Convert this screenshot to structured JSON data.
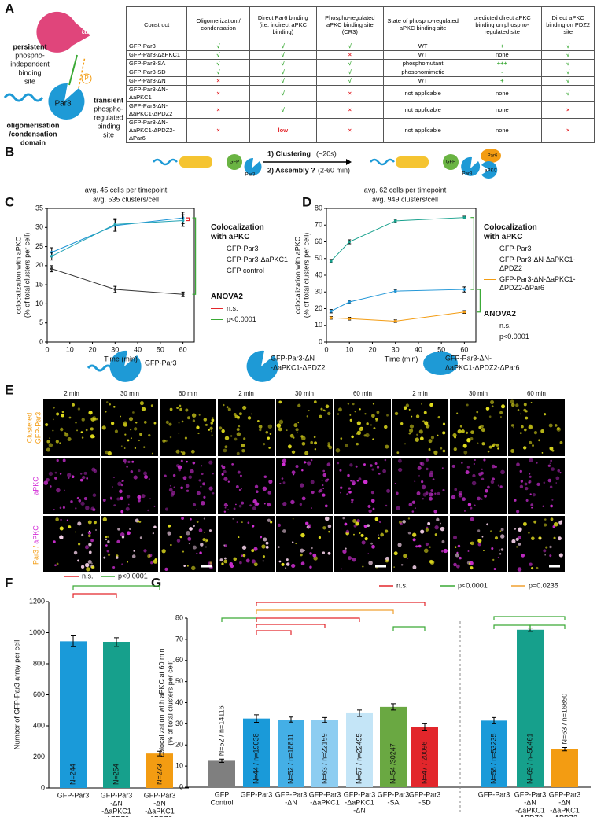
{
  "figure_labels": [
    "A",
    "B",
    "C",
    "D",
    "E",
    "F",
    "G"
  ],
  "panel_a": {
    "diagram": {
      "apkc": "aPKC",
      "par3": "Par3",
      "p": "P",
      "persistent": [
        "persistent",
        "phospho-",
        "independent",
        "binding",
        "site"
      ],
      "transient": [
        "transient",
        "phospho-",
        "regulated",
        "binding",
        "site"
      ],
      "domain": [
        "oligomerisation",
        "/condensation",
        "domain"
      ]
    },
    "table": {
      "header": [
        "Construct",
        "Oligomerization / condensation",
        "Direct Par6 binding (i.e. indirect aPKC binding)",
        "Phospho-regulated aPKC binding site (CR3)",
        "State of phospho-regulated aPKC binding site",
        "predicted direct aPKC binding on phospho-regulated site",
        "Direct aPKC binding on PDZ2 site"
      ],
      "rows": [
        [
          "GFP-Par3",
          "√",
          "√",
          "√",
          "WT",
          "+",
          "√"
        ],
        [
          "GFP-Par3-ΔaPKC1",
          "√",
          "√",
          "×",
          "WT",
          "none",
          "√"
        ],
        [
          "GFP-Par3-SA",
          "√",
          "√",
          "√",
          "phosphomutant",
          "+++",
          "√"
        ],
        [
          "GFP-Par3-SD",
          "√",
          "√",
          "√",
          "phosphomimetic",
          "-",
          "√"
        ],
        [
          "GFP-Par3-ΔN",
          "×",
          "√",
          "√",
          "WT",
          "+",
          "√"
        ],
        [
          "GFP-Par3-ΔN-ΔaPKC1",
          "×",
          "√",
          "×",
          "not applicable",
          "none",
          "√"
        ],
        [
          "GFP-Par3-ΔN-ΔaPKC1-ΔPDZ2",
          "×",
          "√",
          "×",
          "not applicable",
          "none",
          "×"
        ],
        [
          "GFP-Par3-ΔN-ΔaPKC1-ΔPDZ2-ΔPar6",
          "×",
          "low",
          "×",
          "not applicable",
          "none",
          "×"
        ]
      ]
    }
  },
  "panel_b": {
    "gfp": "GFP",
    "par3": "Par3",
    "step1": "1) Clustering",
    "step1_time": "(~20s)",
    "step2": "2) Assembly ?",
    "step2_time": "(2-60 min)",
    "par6": "Par6",
    "apkc": "aPKC"
  },
  "panel_e": {
    "constructs": [
      [
        "GFP-Par3"
      ],
      [
        "GFP-Par3-ΔN",
        "-ΔaPKC1-ΔPDZ2"
      ],
      [
        "GFP-Par3-ΔN-",
        "ΔaPKC1-ΔPDZ2-ΔPar6"
      ]
    ],
    "timepoints": [
      "2 min",
      "30 min",
      "60 min"
    ],
    "rows": [
      [
        "Clustered",
        "GFP-Par3"
      ],
      [
        "aPKC"
      ],
      [
        "Par3 /",
        "aPKC"
      ]
    ]
  },
  "chart_data": [
    {
      "type": "line",
      "title": [
        "avg. 45 cells per timepoint",
        "avg. 535 clusters/cell"
      ],
      "x_label": "Time (min)",
      "y_label": [
        "colocalization with aPKC",
        "(% of total clusters per cell)"
      ],
      "x": [
        2,
        30,
        60
      ],
      "xlim": [
        0,
        65
      ],
      "xticks": [
        0,
        10,
        20,
        30,
        40,
        50,
        60
      ],
      "ylim": [
        0,
        35
      ],
      "yticks": [
        0,
        5,
        10,
        15,
        20,
        25,
        30,
        35
      ],
      "legend_title": [
        "Colocalization",
        "with aPKC"
      ],
      "series": [
        {
          "name": "GFP-Par3",
          "color": "#1f95d6",
          "values": [
            23.5,
            30.5,
            32.5
          ],
          "errors": [
            1.2,
            1.5,
            1.5
          ]
        },
        {
          "name": "GFP-Par3-ΔaPKC1",
          "color": "#22a3b4",
          "values": [
            22.5,
            30.8,
            31.8
          ],
          "errors": [
            1.0,
            1.5,
            1.5
          ]
        },
        {
          "name": "GFP control",
          "color": "#333333",
          "values": [
            19.2,
            13.8,
            12.5
          ],
          "errors": [
            0.8,
            0.8,
            0.6
          ]
        }
      ],
      "stats_title": "ANOVA2",
      "stats_legend": [
        {
          "name": "n.s.",
          "color": "#e3262b"
        },
        {
          "name": "p<0.0001",
          "color": "#3aa935"
        }
      ]
    },
    {
      "type": "line",
      "title": [
        "avg. 62 cells per timepoint",
        "avg. 949 clusters/cell"
      ],
      "x_label": "Time (min)",
      "y_label": [
        "colocalization with aPKC",
        "(% of total clusters per cell)"
      ],
      "x": [
        2,
        10,
        30,
        60
      ],
      "xlim": [
        0,
        65
      ],
      "xticks": [
        0,
        10,
        20,
        30,
        40,
        50,
        60
      ],
      "ylim": [
        0,
        80
      ],
      "yticks": [
        0,
        10,
        20,
        30,
        40,
        50,
        60,
        70,
        80
      ],
      "legend_title": [
        "Colocalization",
        "with aPKC"
      ],
      "series": [
        {
          "name": "GFP-Par3",
          "color": "#1f95d6",
          "values": [
            18.5,
            24,
            30.5,
            31.5
          ],
          "errors": [
            1.0,
            1.0,
            1.0,
            1.5
          ]
        },
        {
          "name": "GFP-Par3-ΔN-ΔaPKC1-ΔPDZ2",
          "color": "#16a08c",
          "values": [
            48.5,
            60,
            72.5,
            74.5
          ],
          "errors": [
            1.0,
            1.2,
            1.0,
            0.8
          ]
        },
        {
          "name": "GFP-Par3-ΔN-ΔaPKC1-ΔPDZ2-ΔPar6",
          "color": "#f39c12",
          "values": [
            14.5,
            14,
            12.5,
            18
          ],
          "errors": [
            0.8,
            0.8,
            0.8,
            0.8
          ]
        }
      ],
      "stats_title": "ANOVA2",
      "stats_legend": [
        {
          "name": "n.s.",
          "color": "#e3262b"
        },
        {
          "name": "p<0.0001",
          "color": "#3aa935"
        }
      ]
    },
    {
      "type": "bar",
      "y_label": [
        "Number of GFP-Par3 array per cell"
      ],
      "categories": [
        [
          "GFP-Par3"
        ],
        [
          "GFP-Par3",
          "-ΔN",
          "-ΔaPKC1",
          "-ΔPDZ2"
        ],
        [
          "GFP-Par3",
          "-ΔN",
          "-ΔaPKC1",
          "-ΔPDZ2",
          "-ΔPar6"
        ]
      ],
      "values": [
        945,
        940,
        222
      ],
      "errors": [
        35,
        28,
        15
      ],
      "colors": [
        "#1a9ad9",
        "#16a08c",
        "#f39c12"
      ],
      "n_labels": [
        "N=244",
        "N=254",
        "N=273"
      ],
      "ylim": [
        0,
        1200
      ],
      "yticks": [
        0,
        200,
        400,
        600,
        800,
        1000,
        1200
      ],
      "legend": [
        {
          "name": "n.s.",
          "color": "#e3262b"
        },
        {
          "name": "p<0.0001",
          "color": "#3aa935"
        }
      ]
    },
    {
      "type": "bar",
      "y_label": [
        "colocalization with aPKC at 60 min",
        "(% of total clusters per cell)"
      ],
      "categories": [
        [
          "GFP",
          "Control"
        ],
        [
          "GFP-Par3"
        ],
        [
          "GFP-Par3",
          "-ΔN"
        ],
        [
          "GFP-Par3",
          "-ΔaPKC1"
        ],
        [
          "GFP-Par3",
          "-ΔaPKC1",
          "-ΔN"
        ],
        [
          "GFP-Par3",
          "-SA"
        ],
        [
          "GFP-Par3",
          "-SD"
        ],
        [
          "GFP-Par3"
        ],
        [
          "GFP-Par3",
          "-ΔN",
          "-ΔaPKC1",
          "-ΔPDZ2"
        ],
        [
          "GFP-Par3",
          "-ΔN",
          "-ΔaPKC1",
          "-ΔPDZ2",
          "-ΔPar6"
        ]
      ],
      "values": [
        12.5,
        32.5,
        32,
        31.8,
        35,
        38,
        28.5,
        31.5,
        74.5,
        18
      ],
      "errors": [
        0.8,
        1.8,
        1.2,
        1.2,
        1.5,
        1.5,
        1.5,
        1.5,
        0.8,
        0.8
      ],
      "colors": [
        "#7f7f7f",
        "#1a9ad9",
        "#44afe6",
        "#8dcdf1",
        "#c4e5f7",
        "#6aa842",
        "#e2262b",
        "#1a9ad9",
        "#16a08c",
        "#f39c12"
      ],
      "n_labels": [
        "N=52 / n=14116",
        "N=44 / n=19038",
        "N=52 / n=18811",
        "N=63 / n=22159",
        "N=57 / n=22495",
        "N=54 /30247",
        "N=47 / 20096",
        "N=58 / n=53235",
        "N=69 / n=50461",
        "N=63 / n=16850"
      ],
      "ylim": [
        0,
        80
      ],
      "yticks": [
        0,
        10,
        20,
        30,
        40,
        50,
        60,
        70,
        80
      ],
      "legend": [
        {
          "name": "n.s.",
          "color": "#e3262b"
        },
        {
          "name": "p<0.0001",
          "color": "#3aa935"
        },
        {
          "name": "p=0.0235",
          "color": "#f0a030"
        }
      ]
    }
  ]
}
